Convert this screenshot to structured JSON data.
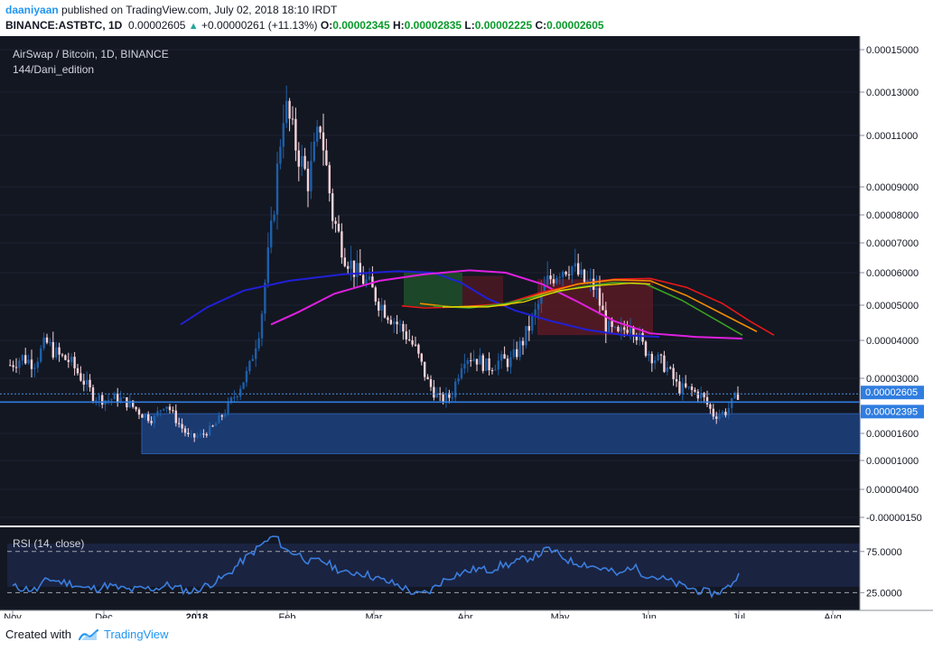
{
  "header": {
    "author": "daaniyaan",
    "published_text": "published on TradingView.com, July 02, 2018 18:10 IRDT",
    "symbol": "BINANCE:ASTBTC, 1D",
    "last": "0.00002605",
    "change": "+0.00000261 (+11.13%)",
    "o_label": "O:",
    "o_value": "0.00002345",
    "h_label": "H:",
    "h_value": "0.00002835",
    "l_label": "L:",
    "l_value": "0.00002225",
    "c_label": "C:",
    "c_value": "0.00002605"
  },
  "legend": {
    "title": "AirSwap / Bitcoin, 1D, BINANCE",
    "subtitle": "144/Dani_edition",
    "rsi_label": "RSI (14, close)"
  },
  "colors": {
    "background": "#131722",
    "candle_up": "#1e5fa8",
    "candle_down": "#f5d3d8",
    "ma_blue": "#2020d8",
    "ma_magenta": "#e020e0",
    "ma_red": "#e81818",
    "ma_orange": "#f08c00",
    "ma_green": "#3aa020",
    "ma_yellow": "#e8d800",
    "support_zone": "#1b3a70",
    "rsi_line": "#3b7ddd"
  },
  "chart_data": {
    "type": "candlestick",
    "title": "AirSwap / Bitcoin, 1D, BINANCE",
    "y_axis_ticks": [
      "0.00015000",
      "0.00013000",
      "0.00011000",
      "0.00009000",
      "0.00008000",
      "0.00007000",
      "0.00006000",
      "0.00005000",
      "0.00004000",
      "0.00003000",
      "0.00001600",
      "0.00001000",
      "0.00000400",
      "-0.00000150"
    ],
    "y_scale": "log-like (TradingView log scale)",
    "x_axis_ticks": [
      "Nov",
      "Dec",
      "2018",
      "Feb",
      "Mar",
      "Apr",
      "May",
      "Jun",
      "Jul",
      "Aug"
    ],
    "price_labels": [
      {
        "value": "0.00002605",
        "kind": "last price"
      },
      {
        "value": "0.00002395",
        "kind": "horizontal line"
      }
    ],
    "support_zone": {
      "from": 1.15e-05,
      "to": 2.1e-05
    },
    "close_approx": [
      3.35e-05,
      3.55e-05,
      3.4e-05,
      3.95e-05,
      3.6e-05,
      3.45e-05,
      3e-05,
      2.55e-05,
      2.45e-05,
      2.5e-05,
      2.35e-05,
      2.1e-05,
      1.95e-05,
      2.4e-05,
      1.9e-05,
      1.5e-05,
      1.55e-05,
      1.75e-05,
      2.15e-05,
      2.65e-05,
      3.2e-05,
      4.5e-05,
      7.8e-05,
      0.000125,
      0.000105,
      9.2e-05,
      0.000115,
      8e-05,
      6.65e-05,
      6e-05,
      5.65e-05,
      5.05e-05,
      4.65e-05,
      4.25e-05,
      3.75e-05,
      2.9e-05,
      2.45e-05,
      2.55e-05,
      3.6e-05,
      3.55e-05,
      3.3e-05,
      3.45e-05,
      3.45e-05,
      4e-05,
      4.75e-05,
      5.7e-05,
      6.1e-05,
      6.25e-05,
      5.75e-05,
      5.55e-05,
      4.35e-05,
      4.1e-05,
      4.55e-05,
      3.85e-05,
      3.55e-05,
      3.3e-05,
      2.75e-05,
      2.7e-05,
      2.55e-05,
      2.05e-05,
      2.15e-05,
      2.605e-05
    ],
    "indicators": [
      {
        "name": "MA (blue)",
        "color": "#2020d8"
      },
      {
        "name": "MA (magenta)",
        "color": "#e020e0"
      },
      {
        "name": "MA ribbon (red/orange/green/yellow)",
        "colors": [
          "#e81818",
          "#f08c00",
          "#3aa020",
          "#e8d800"
        ]
      }
    ],
    "rsi": {
      "period": 14,
      "source": "close",
      "levels": [
        75,
        25
      ],
      "axis_ticks": [
        "75.0000",
        "25.0000"
      ],
      "values_approx": [
        32,
        30,
        28,
        42,
        38,
        36,
        30,
        30,
        34,
        30,
        28,
        30,
        30,
        34,
        30,
        26,
        32,
        38,
        46,
        60,
        72,
        84,
        94,
        76,
        72,
        62,
        64,
        56,
        48,
        50,
        46,
        40,
        36,
        30,
        22,
        26,
        38,
        46,
        50,
        54,
        52,
        58,
        60,
        66,
        70,
        78,
        70,
        62,
        60,
        56,
        52,
        46,
        58,
        48,
        44,
        40,
        34,
        30,
        26,
        24,
        30,
        46
      ]
    }
  },
  "footer": {
    "created_with": "Created with",
    "brand": "TradingView"
  }
}
